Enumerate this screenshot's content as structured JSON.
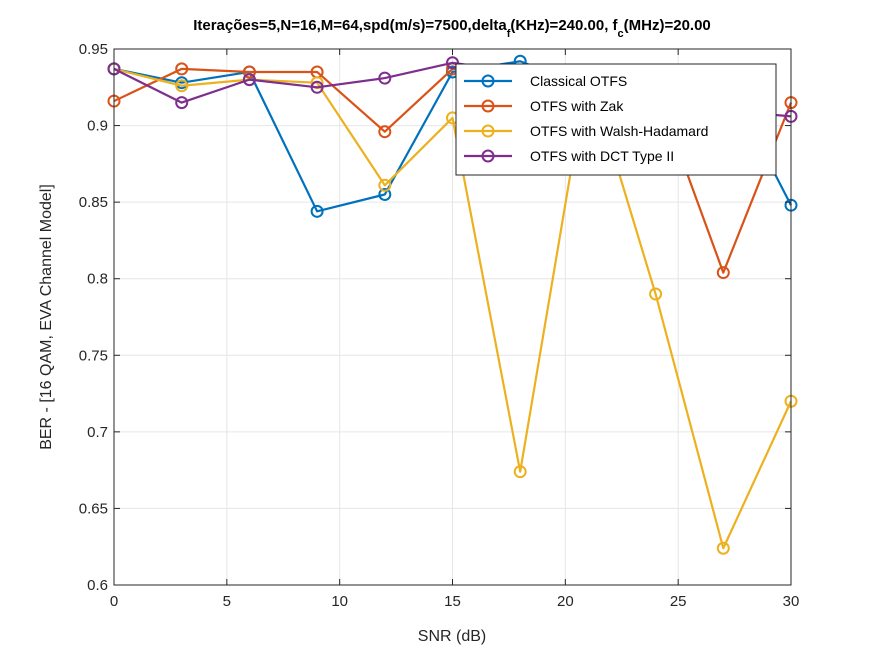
{
  "chart_data": {
    "type": "line",
    "title_main": "Iterações=5,N=16,M=64,spd(m/s)=7500,delta",
    "title_sub1": "f",
    "title_mid": "(KHz)=240.00, f",
    "title_sub2": "c",
    "title_end": "(MHz)=20.00",
    "xlabel": "SNR (dB)",
    "ylabel": "BER - [16 QAM, EVA Channel Model]",
    "xlim": [
      0,
      30
    ],
    "ylim": [
      0.6,
      0.95
    ],
    "xticks": [
      0,
      5,
      10,
      15,
      20,
      25,
      30
    ],
    "yticks": [
      0.6,
      0.65,
      0.7,
      0.75,
      0.8,
      0.85,
      0.9,
      0.95
    ],
    "ytick_labels": [
      "0.6",
      "0.65",
      "0.7",
      "0.75",
      "0.8",
      "0.85",
      "0.9",
      "0.95"
    ],
    "grid": true,
    "legend_position": "top-right",
    "x": [
      0,
      3,
      6,
      9,
      12,
      15,
      18,
      21,
      24,
      27,
      30
    ],
    "series": [
      {
        "name": "Classical OTFS",
        "color": "#0072BD",
        "values": [
          0.937,
          0.928,
          0.935,
          0.844,
          0.855,
          0.935,
          0.942,
          0.925,
          0.925,
          0.934,
          0.848
        ]
      },
      {
        "name": "OTFS with Zak",
        "color": "#D95319",
        "values": [
          0.916,
          0.937,
          0.935,
          0.935,
          0.896,
          0.937,
          0.935,
          0.93,
          0.925,
          0.804,
          0.915
        ]
      },
      {
        "name": "OTFS with Walsh-Hadamard",
        "color": "#EDB120",
        "values": [
          0.937,
          0.926,
          0.93,
          0.928,
          0.861,
          0.905,
          0.674,
          0.936,
          0.79,
          0.624,
          0.72
        ]
      },
      {
        "name": "OTFS with DCT Type II",
        "color": "#7E2F8E",
        "values": [
          0.937,
          0.915,
          0.93,
          0.925,
          0.931,
          0.941,
          0.935,
          0.93,
          0.918,
          0.91,
          0.906
        ]
      }
    ]
  }
}
